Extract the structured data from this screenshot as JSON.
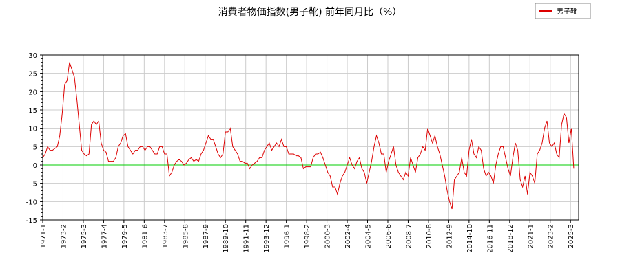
{
  "chart_data": {
    "type": "line",
    "title": "消費者物価指数(男子靴) 前年同月比（%）",
    "x": [
      "1971-1",
      "1971-4",
      "1971-7",
      "1971-10",
      "1972-1",
      "1972-4",
      "1972-7",
      "1972-10",
      "1973-1",
      "1973-4",
      "1973-7",
      "1973-10",
      "1974-1",
      "1974-4",
      "1974-7",
      "1974-10",
      "1975-1",
      "1975-4",
      "1975-7",
      "1975-10",
      "1976-1",
      "1976-4",
      "1976-7",
      "1976-10",
      "1977-1",
      "1977-4",
      "1977-7",
      "1977-10",
      "1978-1",
      "1978-4",
      "1978-7",
      "1978-10",
      "1979-1",
      "1979-4",
      "1979-7",
      "1979-10",
      "1980-1",
      "1980-4",
      "1980-7",
      "1980-10",
      "1981-1",
      "1981-4",
      "1981-7",
      "1981-10",
      "1982-1",
      "1982-4",
      "1982-7",
      "1982-10",
      "1983-1",
      "1983-4",
      "1983-7",
      "1983-10",
      "1984-1",
      "1984-4",
      "1984-7",
      "1984-10",
      "1985-1",
      "1985-4",
      "1985-7",
      "1985-10",
      "1986-1",
      "1986-4",
      "1986-7",
      "1986-10",
      "1987-1",
      "1987-4",
      "1987-7",
      "1987-10",
      "1988-1",
      "1988-4",
      "1988-7",
      "1988-10",
      "1989-1",
      "1989-4",
      "1989-7",
      "1989-10",
      "1990-1",
      "1990-4",
      "1990-7",
      "1990-10",
      "1991-1",
      "1991-4",
      "1991-7",
      "1991-10",
      "1992-1",
      "1992-4",
      "1992-7",
      "1992-10",
      "1993-1",
      "1993-4",
      "1993-7",
      "1993-10",
      "1994-1",
      "1994-4",
      "1994-7",
      "1994-10",
      "1995-1",
      "1995-4",
      "1995-7",
      "1995-10",
      "1996-1",
      "1996-4",
      "1996-7",
      "1996-10",
      "1997-1",
      "1997-4",
      "1997-7",
      "1997-10",
      "1998-1",
      "1998-4",
      "1998-7",
      "1998-10",
      "1999-1",
      "1999-4",
      "1999-7",
      "1999-10",
      "2000-1",
      "2000-4",
      "2000-7",
      "2000-10",
      "2001-1",
      "2001-4",
      "2001-7",
      "2001-10",
      "2002-1",
      "2002-4",
      "2002-7",
      "2002-10",
      "2003-1",
      "2003-4",
      "2003-7",
      "2003-10",
      "2004-1",
      "2004-4",
      "2004-7",
      "2004-10",
      "2005-1",
      "2005-4",
      "2005-7",
      "2005-10",
      "2006-1",
      "2006-4",
      "2006-7",
      "2006-10",
      "2007-1",
      "2007-4",
      "2007-7",
      "2007-10",
      "2008-1",
      "2008-4",
      "2008-7",
      "2008-10",
      "2009-1",
      "2009-4",
      "2009-7",
      "2009-10",
      "2010-1",
      "2010-4",
      "2010-7",
      "2010-10",
      "2011-1",
      "2011-4",
      "2011-7",
      "2011-10",
      "2012-1",
      "2012-4",
      "2012-7",
      "2012-10",
      "2013-1",
      "2013-4",
      "2013-7",
      "2013-10",
      "2014-1",
      "2014-4",
      "2014-7",
      "2014-10",
      "2015-1",
      "2015-4",
      "2015-7",
      "2015-10",
      "2016-1",
      "2016-4",
      "2016-7",
      "2016-10",
      "2017-1",
      "2017-4",
      "2017-7",
      "2017-10",
      "2018-1",
      "2018-4",
      "2018-7",
      "2018-10",
      "2019-1",
      "2019-4",
      "2019-7",
      "2019-10",
      "2020-1",
      "2020-4",
      "2020-7",
      "2020-10",
      "2021-1",
      "2021-4",
      "2021-7",
      "2021-10",
      "2022-1",
      "2022-4",
      "2022-7",
      "2022-10",
      "2023-1",
      "2023-4",
      "2023-7",
      "2023-10",
      "2024-1",
      "2024-4",
      "2024-7",
      "2024-10",
      "2025-1",
      "2025-4",
      "2025-7"
    ],
    "series": [
      {
        "name": "男子靴",
        "color": "#dd0000",
        "values": [
          2,
          3,
          5,
          4,
          4,
          4.5,
          5,
          8,
          14,
          22,
          23,
          28,
          26,
          24,
          18,
          11,
          4,
          3,
          2.5,
          3,
          11,
          12,
          11,
          12,
          6,
          4,
          3.5,
          1,
          1,
          1,
          2,
          5,
          6,
          8,
          8.5,
          5,
          4,
          3,
          4,
          4,
          5,
          5,
          4,
          5,
          5,
          4,
          3,
          3,
          5,
          5,
          3,
          3,
          -3,
          -2,
          0,
          1,
          1.5,
          1,
          0,
          0.5,
          1.5,
          2,
          1,
          1.5,
          1,
          3,
          4,
          6,
          8,
          7,
          7,
          5,
          3,
          2,
          3,
          9,
          9,
          10,
          5,
          4,
          3,
          1,
          1,
          0.5,
          0.5,
          -1,
          0,
          0.5,
          1,
          2,
          2,
          4,
          5,
          6,
          4,
          5,
          6,
          5,
          7,
          5,
          5,
          3,
          3,
          3,
          2.5,
          2.5,
          2,
          -1,
          -0.5,
          -0.5,
          -0.5,
          2,
          3,
          3,
          3.5,
          2,
          0,
          -2,
          -3,
          -6,
          -6,
          -8,
          -5,
          -3,
          -2,
          0,
          2,
          0,
          -1,
          1,
          2,
          -1,
          -2,
          -5,
          -2,
          1,
          5,
          8,
          6,
          3,
          3,
          -2,
          1,
          3,
          5,
          0,
          -2,
          -3,
          -4,
          -2,
          -3,
          2,
          0,
          -2,
          2,
          3,
          5,
          4,
          10,
          8,
          6,
          8,
          5,
          3,
          0,
          -3,
          -7,
          -10,
          -12,
          -4,
          -3,
          -2,
          2,
          -2,
          -3,
          4,
          7,
          3,
          2,
          5,
          4,
          -1,
          -3,
          -2,
          -3,
          -5,
          0,
          3,
          5,
          5,
          2,
          -1,
          -3,
          2,
          6,
          4,
          -4,
          -6,
          -3,
          -8,
          -2,
          -3,
          -5,
          3,
          4,
          6,
          10,
          12,
          6,
          5,
          6,
          3,
          2,
          11,
          14,
          13,
          6,
          10,
          -1
        ]
      }
    ],
    "xlim": [
      "1971-1",
      "2026-1"
    ],
    "xticks": [
      "1971-1",
      "1973-2",
      "1975-3",
      "1977-4",
      "1979-5",
      "1981-6",
      "1983-7",
      "1985-8",
      "1987-9",
      "1989-10",
      "1991-11",
      "1993-12",
      "1996-1",
      "1998-2",
      "2000-3",
      "2002-4",
      "2004-5",
      "2006-6",
      "2008-7",
      "2010-8",
      "2012-9",
      "2014-10",
      "2016-11",
      "2018-12",
      "2021-1",
      "2023-2",
      "2025-3"
    ],
    "ylim": [
      -15,
      30
    ],
    "yticks": [
      -15,
      -10,
      -5,
      0,
      5,
      10,
      15,
      20,
      25,
      30
    ],
    "grid": true,
    "zero_line_color": "#00cc00",
    "legend": "top-right"
  }
}
